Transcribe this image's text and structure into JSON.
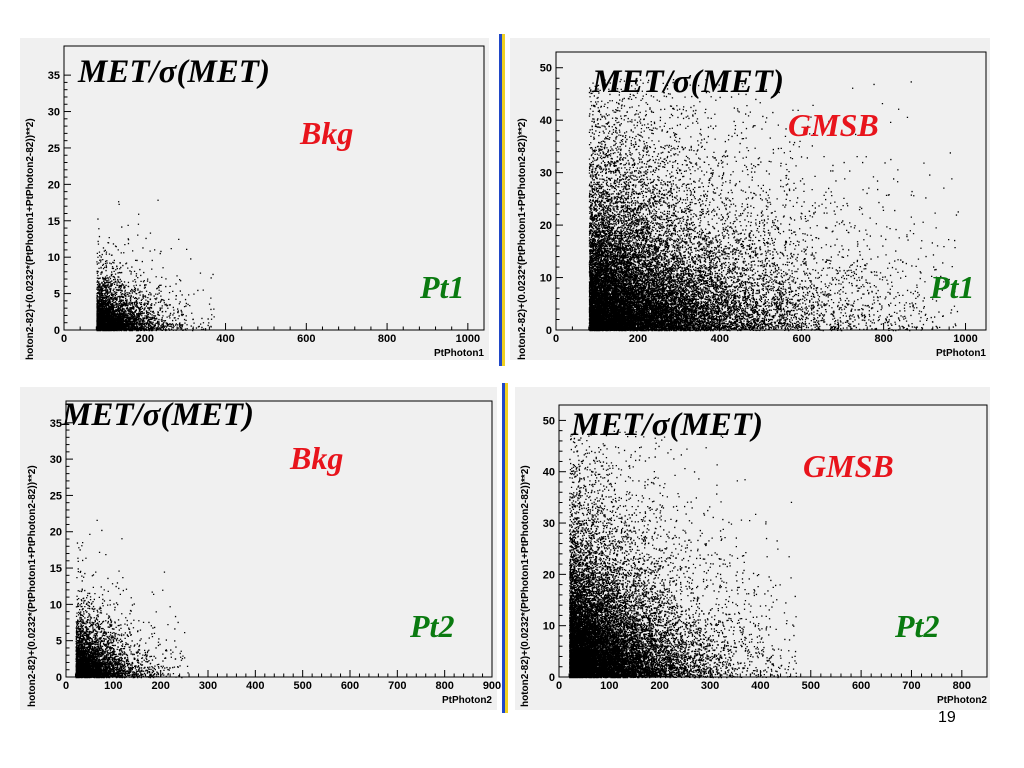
{
  "page_number": "19",
  "colors": {
    "plot_background": "#f0f0f0",
    "points": "#000000",
    "sample_bkg": "#e8141c",
    "sample_gmsb": "#e8141c",
    "variable": "#0a7a10",
    "divider_blue": "#2048c8",
    "divider_yellow": "#f0d020"
  },
  "chart_data": [
    {
      "type": "scatter",
      "ylabel": "hoton2-82)+(0.0232*(PtPhoton1+PtPhoton2-82))**2)",
      "xlabel": "PtPhoton1",
      "xlim": [
        0,
        1040
      ],
      "ylim": [
        0,
        39
      ],
      "xticks": [
        0,
        200,
        400,
        600,
        800,
        1000
      ],
      "yticks": [
        0,
        5,
        10,
        15,
        20,
        25,
        30,
        35
      ],
      "x_tick_labels": [
        "0",
        "200",
        "400",
        "600",
        "800",
        "1000"
      ],
      "y_tick_labels": [
        "0",
        "5",
        "10",
        "15",
        "20",
        "25",
        "30",
        "35"
      ],
      "overlay": {
        "title": "MET/σ(MET)",
        "sample": "Bkg",
        "variable": "Pt1"
      },
      "distribution": {
        "x_min": 80,
        "x_scale": 55,
        "x_max": 1000,
        "y_scale": 2.2,
        "y_max": 30,
        "n_points": 4200,
        "core_x": [
          80,
          200
        ],
        "core_y": [
          0,
          9
        ]
      }
    },
    {
      "type": "scatter",
      "ylabel": "hoton2-82)+(0.0232*(PtPhoton1+PtPhoton2-82))**2)",
      "xlabel": "PtPhoton1",
      "xlim": [
        0,
        1050
      ],
      "ylim": [
        0,
        53
      ],
      "xticks": [
        0,
        200,
        400,
        600,
        800,
        1000
      ],
      "yticks": [
        0,
        10,
        20,
        30,
        40,
        50
      ],
      "x_tick_labels": [
        "0",
        "200",
        "400",
        "600",
        "800",
        "1000"
      ],
      "y_tick_labels": [
        "0",
        "10",
        "20",
        "30",
        "40",
        "50"
      ],
      "overlay": {
        "title": "MET/σ(MET)",
        "sample": "GMSB",
        "variable": "Pt1"
      },
      "distribution": {
        "x_min": 80,
        "x_scale": 170,
        "x_max": 1000,
        "y_scale": 10,
        "y_max": 48,
        "n_points": 22000,
        "core_x": [
          80,
          450
        ],
        "core_y": [
          2,
          35
        ]
      }
    },
    {
      "type": "scatter",
      "ylabel": "hoton2-82)+(0.0232*(PtPhoton1+PtPhoton2-82))**2)",
      "xlabel": "PtPhoton2",
      "xlim": [
        0,
        900
      ],
      "ylim": [
        0,
        38
      ],
      "xticks": [
        0,
        100,
        200,
        300,
        400,
        500,
        600,
        700,
        800,
        900
      ],
      "yticks": [
        0,
        5,
        10,
        15,
        20,
        25,
        30,
        35
      ],
      "x_tick_labels": [
        "0",
        "100",
        "200",
        "300",
        "400",
        "500",
        "600",
        "700",
        "800",
        "900"
      ],
      "y_tick_labels": [
        "0",
        "5",
        "10",
        "15",
        "20",
        "25",
        "30",
        "35"
      ],
      "overlay": {
        "title": "MET/σ(MET)",
        "sample": "Bkg",
        "variable": "Pt2"
      },
      "distribution": {
        "x_min": 20,
        "x_scale": 45,
        "x_max": 880,
        "y_scale": 2.5,
        "y_max": 30,
        "n_points": 4500,
        "core_x": [
          20,
          150
        ],
        "core_y": [
          0,
          9
        ]
      }
    },
    {
      "type": "scatter",
      "ylabel": "hoton2-82)+(0.0232*(PtPhoton1+PtPhoton2-82))**2)",
      "xlabel": "PtPhoton2",
      "xlim": [
        0,
        850
      ],
      "ylim": [
        0,
        53
      ],
      "xticks": [
        0,
        100,
        200,
        300,
        400,
        500,
        600,
        700,
        800
      ],
      "yticks": [
        0,
        10,
        20,
        30,
        40,
        50
      ],
      "x_tick_labels": [
        "0",
        "100",
        "200",
        "300",
        "400",
        "500",
        "600",
        "700",
        "800"
      ],
      "y_tick_labels": [
        "0",
        "10",
        "20",
        "30",
        "40",
        "50"
      ],
      "overlay": {
        "title": "MET/σ(MET)",
        "sample": "GMSB",
        "variable": "Pt2"
      },
      "distribution": {
        "x_min": 20,
        "x_scale": 85,
        "x_max": 820,
        "y_scale": 9,
        "y_max": 48,
        "n_points": 18000,
        "core_x": [
          20,
          250
        ],
        "core_y": [
          2,
          35
        ]
      }
    }
  ]
}
